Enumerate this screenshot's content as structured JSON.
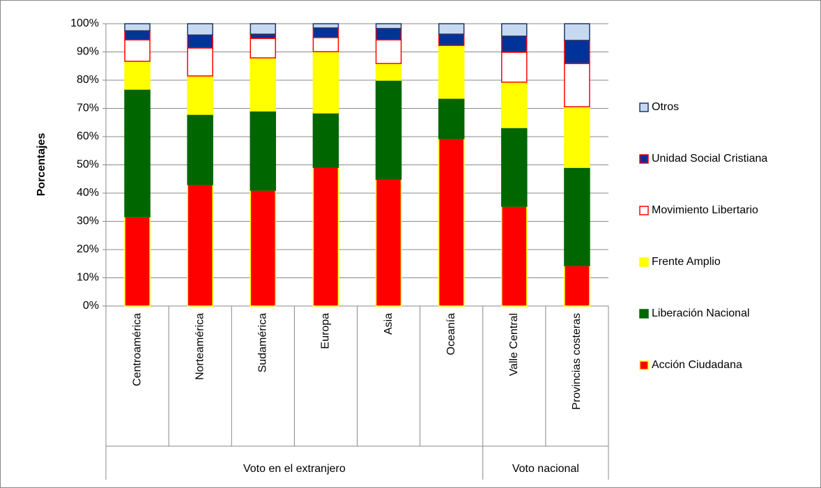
{
  "chart_data": {
    "type": "stacked_bar",
    "y_label": "Porcentajes",
    "categories": [
      "Centroamérica",
      "Norteamérica",
      "Sudamérica",
      "Europa",
      "Asia",
      "Oceanía",
      "Valle Central",
      "Provincias costeras"
    ],
    "groups": [
      {
        "name": "Voto en el extranjero",
        "size": 6
      },
      {
        "name": "Voto nacional",
        "size": 2
      }
    ],
    "series": [
      {
        "name": "Acción Ciudadana",
        "color": "#ff0000",
        "edgecolor": "#ffff00",
        "values": [
          31.6,
          43.0,
          41.0,
          49.1,
          44.9,
          59.3,
          35.3,
          14.3
        ]
      },
      {
        "name": "Liberación Nacional",
        "color": "#006600",
        "edgecolor": "#006600",
        "values": [
          45.2,
          24.9,
          28.1,
          19.3,
          35.1,
          14.3,
          27.9,
          34.8
        ]
      },
      {
        "name": "Frente Amplio",
        "color": "#ffff00",
        "edgecolor": "#ffff00",
        "values": [
          9.9,
          13.6,
          18.8,
          21.7,
          5.9,
          18.7,
          16.1,
          21.5
        ]
      },
      {
        "name": "Movimiento Libertario",
        "color": "#ffffff",
        "edgecolor": "#ff0000",
        "values": [
          7.6,
          9.9,
          6.9,
          5.0,
          8.4,
          0,
          10.6,
          15.3
        ]
      },
      {
        "name": "Unidad Social Cristiana",
        "color": "#003399",
        "edgecolor": "#ff0000",
        "values": [
          3.2,
          4.6,
          1.5,
          3.4,
          4.0,
          4.0,
          5.7,
          8.2
        ]
      },
      {
        "name": "Otros",
        "color": "#c6d9f1",
        "edgecolor": "#1f3864",
        "values": [
          2.5,
          4.0,
          3.7,
          1.5,
          1.7,
          3.7,
          4.4,
          5.9
        ]
      }
    ],
    "ylim": [
      0,
      100
    ],
    "yticks": [
      {
        "value": 0,
        "label": "0%"
      },
      {
        "value": 10,
        "label": "10%"
      },
      {
        "value": 20,
        "label": "20%"
      },
      {
        "value": 30,
        "label": "30%"
      },
      {
        "value": 40,
        "label": "40%"
      },
      {
        "value": 50,
        "label": "50%"
      },
      {
        "value": 60,
        "label": "60%"
      },
      {
        "value": 70,
        "label": "70%"
      },
      {
        "value": 80,
        "label": "80%"
      },
      {
        "value": 90,
        "label": "90%"
      },
      {
        "value": 100,
        "label": "100%"
      }
    ],
    "grid": true,
    "legend": "right"
  }
}
